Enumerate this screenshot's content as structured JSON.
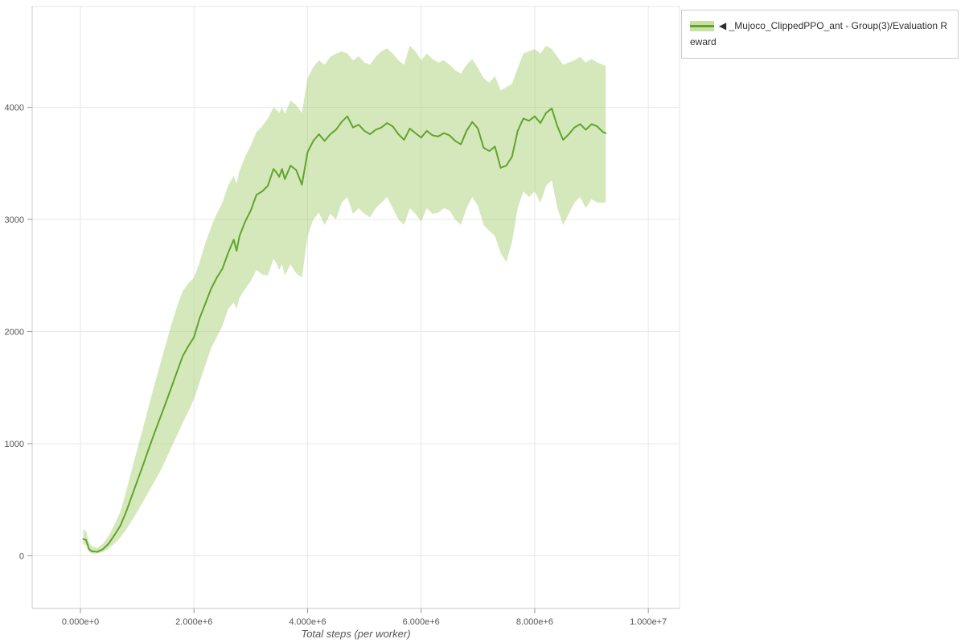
{
  "figure": {
    "background": "#ffffff",
    "legend_label": "◀ _Mujoco_ClippedPPO_ant - Group(3)/Evaluation Reward"
  },
  "chart_data": {
    "type": "line",
    "title": "",
    "xlabel": "Total steps (per worker)",
    "ylabel": "",
    "x_scale": 1000000,
    "xlim": [
      -0.85,
      10.55
    ],
    "ylim": [
      -470,
      4900
    ],
    "grid": true,
    "legend_position": "top-right",
    "x_ticks": [
      {
        "value": 0,
        "label": "0.000e+0"
      },
      {
        "value": 2,
        "label": "2.000e+6"
      },
      {
        "value": 4,
        "label": "4.000e+6"
      },
      {
        "value": 6,
        "label": "6.000e+6"
      },
      {
        "value": 8,
        "label": "8.000e+6"
      },
      {
        "value": 10,
        "label": "1.000e+7"
      }
    ],
    "y_ticks": [
      {
        "value": 0,
        "label": "0"
      },
      {
        "value": 1000,
        "label": "1000"
      },
      {
        "value": 2000,
        "label": "2000"
      },
      {
        "value": 3000,
        "label": "3000"
      },
      {
        "value": 4000,
        "label": "4000"
      }
    ],
    "series": [
      {
        "name": "_Mujoco_ClippedPPO_ant - Group(3)/Evaluation Reward",
        "color": "#61a42c",
        "band_color": "#9cc95e",
        "band_opacity": 0.42,
        "line_width": 2,
        "x": [
          0.05,
          0.1,
          0.15,
          0.2,
          0.3,
          0.4,
          0.5,
          0.6,
          0.7,
          0.8,
          0.9,
          1.0,
          1.1,
          1.2,
          1.3,
          1.4,
          1.5,
          1.6,
          1.7,
          1.8,
          1.9,
          2.0,
          2.1,
          2.2,
          2.3,
          2.4,
          2.5,
          2.6,
          2.7,
          2.75,
          2.8,
          2.9,
          3.0,
          3.1,
          3.2,
          3.3,
          3.4,
          3.45,
          3.5,
          3.55,
          3.6,
          3.7,
          3.8,
          3.9,
          4.0,
          4.1,
          4.2,
          4.3,
          4.4,
          4.5,
          4.6,
          4.7,
          4.8,
          4.9,
          5.0,
          5.1,
          5.2,
          5.3,
          5.4,
          5.5,
          5.6,
          5.7,
          5.8,
          5.9,
          6.0,
          6.1,
          6.2,
          6.3,
          6.4,
          6.5,
          6.6,
          6.7,
          6.8,
          6.9,
          7.0,
          7.1,
          7.2,
          7.3,
          7.4,
          7.5,
          7.6,
          7.7,
          7.8,
          7.9,
          8.0,
          8.1,
          8.2,
          8.3,
          8.4,
          8.5,
          8.6,
          8.7,
          8.8,
          8.9,
          9.0,
          9.1,
          9.2,
          9.25
        ],
        "mean": [
          150,
          140,
          60,
          40,
          35,
          60,
          110,
          185,
          265,
          385,
          525,
          665,
          805,
          950,
          1090,
          1225,
          1360,
          1500,
          1640,
          1780,
          1870,
          1950,
          2120,
          2250,
          2380,
          2480,
          2560,
          2700,
          2820,
          2720,
          2850,
          2980,
          3080,
          3220,
          3250,
          3300,
          3450,
          3420,
          3380,
          3450,
          3360,
          3480,
          3440,
          3310,
          3600,
          3700,
          3760,
          3700,
          3760,
          3800,
          3870,
          3920,
          3820,
          3845,
          3790,
          3760,
          3800,
          3820,
          3860,
          3830,
          3760,
          3710,
          3810,
          3770,
          3730,
          3790,
          3750,
          3740,
          3770,
          3750,
          3700,
          3670,
          3790,
          3870,
          3810,
          3640,
          3610,
          3650,
          3460,
          3480,
          3560,
          3790,
          3900,
          3880,
          3920,
          3860,
          3950,
          3990,
          3830,
          3710,
          3760,
          3820,
          3850,
          3800,
          3850,
          3830,
          3780,
          3770
        ],
        "lower": [
          100,
          95,
          35,
          20,
          20,
          35,
          65,
          110,
          160,
          230,
          310,
          390,
          480,
          570,
          660,
          750,
          855,
          965,
          1075,
          1185,
          1285,
          1400,
          1550,
          1700,
          1850,
          1950,
          2050,
          2200,
          2260,
          2200,
          2300,
          2380,
          2450,
          2550,
          2510,
          2500,
          2650,
          2610,
          2550,
          2600,
          2500,
          2600,
          2520,
          2480,
          2850,
          3000,
          3060,
          2950,
          3050,
          3000,
          3150,
          3200,
          3050,
          3100,
          3050,
          3020,
          3100,
          3150,
          3200,
          3100,
          3000,
          2950,
          3100,
          3050,
          2980,
          3100,
          3050,
          3060,
          3100,
          3080,
          3000,
          2950,
          3100,
          3200,
          3120,
          2950,
          2900,
          2850,
          2700,
          2620,
          2800,
          3100,
          3250,
          3200,
          3250,
          3150,
          3300,
          3350,
          3100,
          2950,
          3050,
          3150,
          3200,
          3100,
          3180,
          3150,
          3150,
          3150
        ],
        "upper": [
          235,
          220,
          120,
          85,
          70,
          110,
          180,
          280,
          390,
          565,
          760,
          950,
          1135,
          1330,
          1520,
          1700,
          1880,
          2060,
          2220,
          2360,
          2430,
          2480,
          2620,
          2790,
          2930,
          3050,
          3150,
          3300,
          3390,
          3320,
          3430,
          3560,
          3660,
          3780,
          3830,
          3900,
          4000,
          3980,
          3950,
          4000,
          3940,
          4060,
          4020,
          3950,
          4260,
          4360,
          4420,
          4380,
          4450,
          4480,
          4500,
          4480,
          4420,
          4455,
          4400,
          4380,
          4450,
          4500,
          4525,
          4480,
          4420,
          4380,
          4550,
          4500,
          4420,
          4480,
          4430,
          4400,
          4420,
          4380,
          4330,
          4300,
          4380,
          4430,
          4350,
          4260,
          4220,
          4280,
          4150,
          4180,
          4210,
          4350,
          4480,
          4500,
          4520,
          4480,
          4550,
          4520,
          4450,
          4380,
          4400,
          4420,
          4450,
          4400,
          4430,
          4400,
          4380,
          4370
        ]
      }
    ]
  }
}
